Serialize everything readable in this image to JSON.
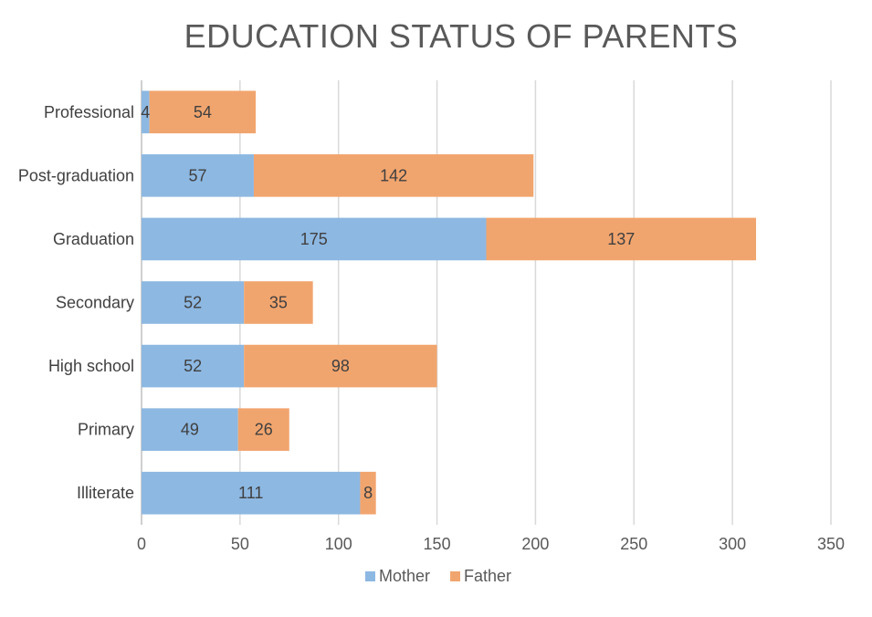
{
  "chart_data": {
    "type": "bar",
    "orientation": "horizontal",
    "stacked": true,
    "title": "EDUCATION STATUS OF PARENTS",
    "categories": [
      "Professional",
      "Post-graduation",
      "Graduation",
      "Secondary",
      "High school",
      "Primary",
      "Illiterate"
    ],
    "series": [
      {
        "name": "Mother",
        "color": "#8db8e2",
        "values": [
          4,
          57,
          175,
          52,
          52,
          49,
          111
        ]
      },
      {
        "name": "Father",
        "color": "#f1a56e",
        "values": [
          54,
          142,
          137,
          35,
          98,
          26,
          8
        ]
      }
    ],
    "xlim": [
      0,
      350
    ],
    "xticks": [
      0,
      50,
      100,
      150,
      200,
      250,
      300,
      350
    ],
    "grid": true,
    "legend": "bottom",
    "xlabel": "",
    "ylabel": ""
  }
}
